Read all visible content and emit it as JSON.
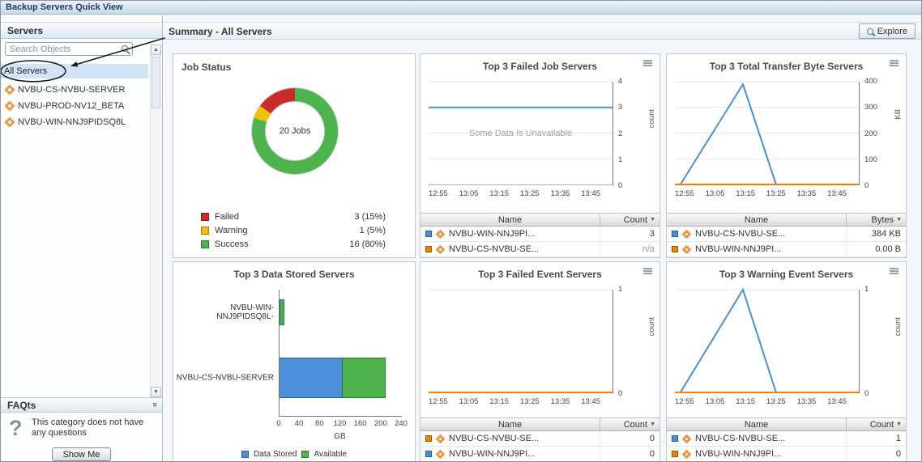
{
  "window_title": "Backup Servers Quick View",
  "glyphs": {
    "sort_desc": "▼",
    "scroll_up": "▲",
    "scroll_down": "▼",
    "collapse_chevron": "»",
    "question_mark": "?"
  },
  "sidebar": {
    "title": "Servers",
    "search_placeholder": "Search Objects",
    "root_item": "All Servers",
    "servers": [
      "NVBU-CS-NVBU-SERVER",
      "NVBU-PROD-NV12_BETA",
      "NVBU-WIN-NNJ9PIDSQ8L"
    ],
    "faqts": {
      "title": "FAQts",
      "message_line1": "This category does not have",
      "message_line2": "any questions",
      "show_me_button": "Show Me"
    }
  },
  "header": {
    "title": "Summary - All Servers",
    "explore_button": "Explore"
  },
  "time_axis": [
    "12:55",
    "13:05",
    "13:15",
    "13:25",
    "13:35",
    "13:45"
  ],
  "panels": {
    "job_status": {
      "title": "Job Status",
      "center_label": "20 Jobs",
      "legend": [
        {
          "label": "Failed",
          "value": "3 (15%)",
          "color": "#cc2b2b",
          "pct": 15
        },
        {
          "label": "Warning",
          "value": "1 (5%)",
          "color": "#f2c200",
          "pct": 5
        },
        {
          "label": "Success",
          "value": "16 (80%)",
          "color": "#4db34d",
          "pct": 80
        }
      ]
    },
    "failed_jobs": {
      "title": "Top 3 Failed Job Servers",
      "type": "line",
      "no_data_message": "Some Data Is Unavailable",
      "ylabel": "count",
      "ymax": 4,
      "yticks": [
        "4",
        "3",
        "2",
        "1",
        "0"
      ],
      "series": [
        {
          "name": "NVBU-WIN-NNJ9PIDSQ8L",
          "color": "#4a90d9",
          "x": [
            0,
            1
          ],
          "y": [
            3,
            3
          ]
        }
      ],
      "table": {
        "name_header": "Name",
        "value_header": "Count",
        "rows": [
          {
            "color": "#4a90d9",
            "name": "NVBU-WIN-NNJ9PI...",
            "value": "3"
          },
          {
            "color": "#ef8200",
            "name": "NVBU-CS-NVBU-SE...",
            "value": "n/a"
          }
        ]
      }
    },
    "transfer_bytes": {
      "title": "Top 3 Total Transfer Byte Servers",
      "type": "line",
      "ylabel": "KB",
      "ymax": 400,
      "yticks": [
        "400",
        "300",
        "200",
        "100",
        "0"
      ],
      "series": [
        {
          "name": "NVBU-CS-NVBU-SERVER",
          "color": "#4a90d9",
          "x": [
            0.03,
            0.37,
            0.55,
            1
          ],
          "y": [
            0,
            390,
            0,
            0
          ]
        },
        {
          "name": "NVBU-WIN-NNJ9PIDSQ8L",
          "color": "#ef8200",
          "x": [
            0,
            1
          ],
          "y": [
            0,
            0
          ]
        }
      ],
      "table": {
        "name_header": "Name",
        "value_header": "Bytes",
        "rows": [
          {
            "color": "#4a90d9",
            "name": "NVBU-CS-NVBU-SE...",
            "value": "384 KB"
          },
          {
            "color": "#ef8200",
            "name": "NVBU-WIN-NNJ9PI...",
            "value": "0.00 B"
          }
        ]
      }
    },
    "data_stored": {
      "title": "Top 3 Data Stored Servers",
      "type": "bar",
      "xlabel": "GB",
      "xmax": 240,
      "xticks": [
        "0",
        "40",
        "80",
        "120",
        "160",
        "200",
        "240"
      ],
      "bars": [
        {
          "label": "NVBU-WIN-NNJ9PIDSQ8L-",
          "data_stored": 2,
          "available": 8
        },
        {
          "label": "NVBU-CS-NVBU-SERVER",
          "data_stored": 125,
          "available": 85
        }
      ],
      "legend": [
        {
          "label": "Data Stored",
          "color": "#4a90d9"
        },
        {
          "label": "Available",
          "color": "#4db34d"
        }
      ]
    },
    "failed_events": {
      "title": "Top 3 Failed Event Servers",
      "type": "line",
      "ylabel": "count",
      "ymax": 1,
      "yticks": [
        "1",
        "0"
      ],
      "series": [
        {
          "name": "NVBU-WIN-NNJ9PIDSQ8L",
          "color": "#4a90d9",
          "x": [
            0,
            1
          ],
          "y": [
            0,
            0
          ]
        },
        {
          "name": "NVBU-CS-NVBU-SERVER",
          "color": "#ef8200",
          "x": [
            0,
            1
          ],
          "y": [
            0,
            0
          ]
        }
      ],
      "table": {
        "name_header": "Name",
        "value_header": "Count",
        "rows": [
          {
            "color": "#ef8200",
            "name": "NVBU-CS-NVBU-SE...",
            "value": "0"
          },
          {
            "color": "#4a90d9",
            "name": "NVBU-WIN-NNJ9PI...",
            "value": "0"
          }
        ]
      }
    },
    "warning_events": {
      "title": "Top 3 Warning Event Servers",
      "type": "line",
      "ylabel": "count",
      "ymax": 1,
      "yticks": [
        "1",
        "0"
      ],
      "series": [
        {
          "name": "NVBU-CS-NVBU-SERVER",
          "color": "#4a90d9",
          "x": [
            0.03,
            0.37,
            0.55,
            1
          ],
          "y": [
            0,
            1,
            0,
            0
          ]
        },
        {
          "name": "NVBU-WIN-NNJ9PIDSQ8L",
          "color": "#ef8200",
          "x": [
            0,
            1
          ],
          "y": [
            0,
            0
          ]
        }
      ],
      "table": {
        "name_header": "Name",
        "value_header": "Count",
        "rows": [
          {
            "color": "#4a90d9",
            "name": "NVBU-CS-NVBU-SE...",
            "value": "1"
          },
          {
            "color": "#ef8200",
            "name": "NVBU-WIN-NNJ9PI...",
            "value": "0"
          }
        ]
      }
    }
  }
}
